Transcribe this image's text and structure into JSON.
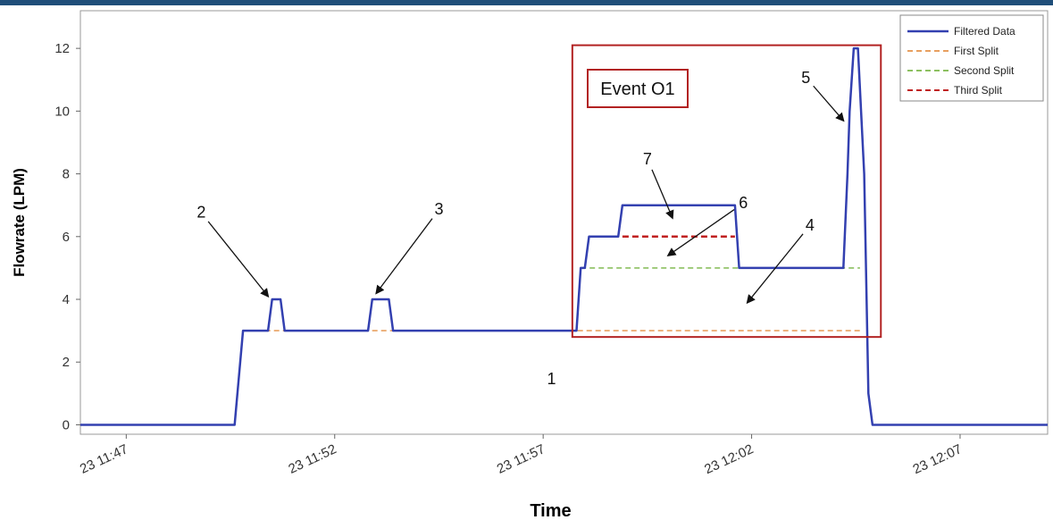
{
  "chart_data": {
    "type": "line",
    "xlabel": "Time",
    "ylabel": "Flowrate (LPM)",
    "ylim": [
      -0.3,
      13.2
    ],
    "yticks": [
      0,
      2,
      4,
      6,
      8,
      10,
      12
    ],
    "xlim": [
      "23 11:45.9",
      "23 12:09.1"
    ],
    "xticks": [
      {
        "t": 47,
        "label": "23 11:47"
      },
      {
        "t": 52,
        "label": "23 11:52"
      },
      {
        "t": 57,
        "label": "23 11:57"
      },
      {
        "t": 62,
        "label": "23 12:02"
      },
      {
        "t": 67,
        "label": "23 12:07"
      }
    ],
    "grid": false,
    "legend_position": "top-right",
    "series": [
      {
        "name": "Filtered Data",
        "color": "#3340b0",
        "style": "solid",
        "x": [
          45.9,
          49.6,
          49.8,
          50.0,
          50.4,
          50.5,
          50.7,
          50.8,
          52.8,
          52.9,
          53.3,
          53.4,
          57.8,
          57.9,
          58.0,
          58.1,
          58.8,
          58.9,
          59.6,
          61.6,
          61.7,
          64.2,
          64.3,
          64.35,
          64.45,
          64.55,
          64.7,
          64.8,
          64.9,
          69.1
        ],
        "y": [
          0,
          0,
          3,
          3,
          3,
          4,
          4,
          3,
          3,
          4,
          4,
          3,
          3,
          5,
          5,
          6,
          6,
          7,
          7,
          7,
          5,
          5,
          8,
          10,
          12,
          12,
          8,
          1,
          0,
          0
        ]
      },
      {
        "name": "First Split",
        "color": "#e8a060",
        "style": "dashed",
        "x": [
          49.9,
          64.6
        ],
        "y": [
          3,
          3
        ]
      },
      {
        "name": "Second Split",
        "color": "#8cc060",
        "style": "dashed",
        "x": [
          57.9,
          64.6
        ],
        "y": [
          5,
          5
        ]
      },
      {
        "name": "Third Split",
        "color": "#c02020",
        "style": "dashed",
        "x": [
          58.9,
          61.6
        ],
        "y": [
          6,
          6
        ]
      }
    ],
    "annotations": [
      {
        "label": "1",
        "x": 57.2,
        "y": 1.3
      },
      {
        "label": "2",
        "x": 48.8,
        "y": 6.6,
        "arrow_x": 50.4,
        "arrow_y": 4.1
      },
      {
        "label": "3",
        "x": 54.5,
        "y": 6.7,
        "arrow_x": 53.0,
        "arrow_y": 4.2
      },
      {
        "label": "4",
        "x": 63.4,
        "y": 6.2,
        "arrow_x": 61.9,
        "arrow_y": 3.9
      },
      {
        "label": "5",
        "x": 63.3,
        "y": 10.9,
        "arrow_x": 64.2,
        "arrow_y": 9.7
      },
      {
        "label": "6",
        "x": 61.8,
        "y": 6.9,
        "arrow_x": 60.0,
        "arrow_y": 5.4
      },
      {
        "label": "7",
        "x": 59.5,
        "y": 8.3,
        "arrow_x": 60.1,
        "arrow_y": 6.6
      }
    ],
    "event_box": {
      "label": "Event O1",
      "color": "#b22222",
      "x0": 57.7,
      "x1": 65.1,
      "y0": 2.8,
      "y1": 12.1
    }
  }
}
